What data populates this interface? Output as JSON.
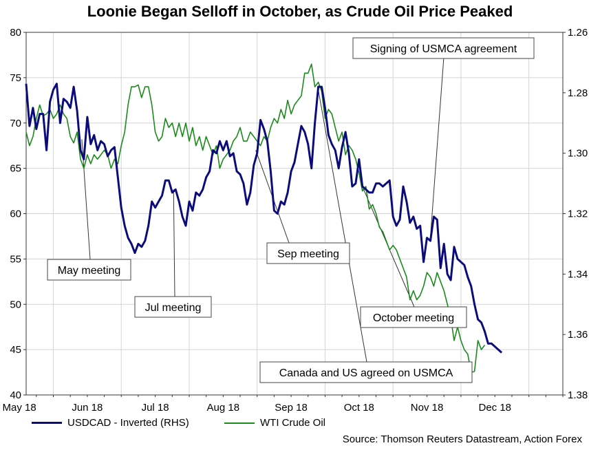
{
  "chart_data": {
    "type": "line",
    "title": "Loonie Began Selloff in October, as Crude Oil Price Peaked",
    "x_tick_labels": [
      "May 18",
      "Jun 18",
      "Jul 18",
      "Aug 18",
      "Sep 18",
      "Oct 18",
      "Nov 18",
      "Dec 18"
    ],
    "y_left": {
      "min": 40,
      "max": 80,
      "ticks": [
        "40",
        "45",
        "50",
        "55",
        "60",
        "65",
        "70",
        "75",
        "80"
      ]
    },
    "y_right": {
      "min": 1.26,
      "max": 1.38,
      "inverted": true,
      "ticks": [
        "1.26",
        "1.28",
        "1.30",
        "1.32",
        "1.34",
        "1.36",
        "1.38"
      ]
    },
    "x_range_months": [
      0.6,
      8.5
    ],
    "series": [
      {
        "name": "USDCAD - Inverted (RHS)",
        "axis": "right",
        "color": "#0b0b7a",
        "points": [
          [
            0.6,
            1.277
          ],
          [
            0.65,
            1.291
          ],
          [
            0.7,
            1.285
          ],
          [
            0.75,
            1.292
          ],
          [
            0.8,
            1.287
          ],
          [
            0.85,
            1.287
          ],
          [
            0.9,
            1.299
          ],
          [
            0.95,
            1.283
          ],
          [
            1.0,
            1.279
          ],
          [
            1.05,
            1.277
          ],
          [
            1.1,
            1.29
          ],
          [
            1.15,
            1.282
          ],
          [
            1.2,
            1.283
          ],
          [
            1.25,
            1.285
          ],
          [
            1.3,
            1.278
          ],
          [
            1.35,
            1.286
          ],
          [
            1.4,
            1.299
          ],
          [
            1.45,
            1.302
          ],
          [
            1.5,
            1.288
          ],
          [
            1.55,
            1.297
          ],
          [
            1.6,
            1.294
          ],
          [
            1.65,
            1.299
          ],
          [
            1.7,
            1.296
          ],
          [
            1.75,
            1.297
          ],
          [
            1.8,
            1.301
          ],
          [
            1.85,
            1.299
          ],
          [
            1.9,
            1.298
          ],
          [
            1.95,
            1.308
          ],
          [
            2.0,
            1.318
          ],
          [
            2.05,
            1.324
          ],
          [
            2.1,
            1.328
          ],
          [
            2.15,
            1.33
          ],
          [
            2.2,
            1.333
          ],
          [
            2.25,
            1.33
          ],
          [
            2.3,
            1.331
          ],
          [
            2.35,
            1.329
          ],
          [
            2.4,
            1.324
          ],
          [
            2.45,
            1.316
          ],
          [
            2.5,
            1.318
          ],
          [
            2.55,
            1.316
          ],
          [
            2.6,
            1.314
          ],
          [
            2.65,
            1.309
          ],
          [
            2.7,
            1.309
          ],
          [
            2.75,
            1.313
          ],
          [
            2.8,
            1.312
          ],
          [
            2.85,
            1.316
          ],
          [
            2.9,
            1.321
          ],
          [
            2.95,
            1.324
          ],
          [
            3.0,
            1.316
          ],
          [
            3.05,
            1.319
          ],
          [
            3.1,
            1.313
          ],
          [
            3.15,
            1.314
          ],
          [
            3.2,
            1.312
          ],
          [
            3.25,
            1.308
          ],
          [
            3.3,
            1.306
          ],
          [
            3.35,
            1.299
          ],
          [
            3.4,
            1.3
          ],
          [
            3.45,
            1.296
          ],
          [
            3.5,
            1.299
          ],
          [
            3.55,
            1.296
          ],
          [
            3.6,
            1.301
          ],
          [
            3.65,
            1.3
          ],
          [
            3.7,
            1.306
          ],
          [
            3.75,
            1.307
          ],
          [
            3.8,
            1.31
          ],
          [
            3.85,
            1.317
          ],
          [
            3.9,
            1.313
          ],
          [
            3.95,
            1.304
          ],
          [
            4.0,
            1.3
          ],
          [
            4.05,
            1.289
          ],
          [
            4.1,
            1.292
          ],
          [
            4.15,
            1.296
          ],
          [
            4.2,
            1.306
          ],
          [
            4.25,
            1.319
          ],
          [
            4.3,
            1.32
          ],
          [
            4.35,
            1.316
          ],
          [
            4.4,
            1.317
          ],
          [
            4.45,
            1.313
          ],
          [
            4.5,
            1.306
          ],
          [
            4.55,
            1.303
          ],
          [
            4.6,
            1.297
          ],
          [
            4.65,
            1.291
          ],
          [
            4.7,
            1.293
          ],
          [
            4.75,
            1.297
          ],
          [
            4.8,
            1.305
          ],
          [
            4.85,
            1.29
          ],
          [
            4.9,
            1.278
          ],
          [
            4.95,
            1.278
          ],
          [
            5.0,
            1.285
          ],
          [
            5.05,
            1.294
          ],
          [
            5.1,
            1.297
          ],
          [
            5.15,
            1.299
          ],
          [
            5.2,
            1.305
          ],
          [
            5.25,
            1.298
          ],
          [
            5.3,
            1.293
          ],
          [
            5.35,
            1.3
          ],
          [
            5.4,
            1.311
          ],
          [
            5.45,
            1.31
          ],
          [
            5.5,
            1.302
          ],
          [
            5.55,
            1.311
          ],
          [
            5.6,
            1.312
          ],
          [
            5.65,
            1.313
          ],
          [
            5.7,
            1.313
          ],
          [
            5.75,
            1.31
          ],
          [
            5.8,
            1.31
          ],
          [
            5.85,
            1.311
          ],
          [
            5.9,
            1.31
          ],
          [
            5.95,
            1.309
          ],
          [
            6.0,
            1.321
          ],
          [
            6.05,
            1.324
          ],
          [
            6.1,
            1.322
          ],
          [
            6.15,
            1.311
          ],
          [
            6.2,
            1.316
          ],
          [
            6.25,
            1.323
          ],
          [
            6.3,
            1.321
          ],
          [
            6.35,
            1.325
          ],
          [
            6.4,
            1.324
          ],
          [
            6.45,
            1.336
          ],
          [
            6.5,
            1.328
          ],
          [
            6.55,
            1.329
          ],
          [
            6.6,
            1.321
          ],
          [
            6.65,
            1.322
          ],
          [
            6.7,
            1.338
          ],
          [
            6.75,
            1.33
          ],
          [
            6.8,
            1.34
          ],
          [
            6.85,
            1.342
          ],
          [
            6.9,
            1.331
          ],
          [
            6.95,
            1.335
          ],
          [
            7.0,
            1.336
          ],
          [
            7.05,
            1.337
          ],
          [
            7.1,
            1.341
          ],
          [
            7.15,
            1.344
          ],
          [
            7.2,
            1.35
          ],
          [
            7.25,
            1.355
          ],
          [
            7.3,
            1.356
          ],
          [
            7.35,
            1.359
          ],
          [
            7.4,
            1.363
          ],
          [
            7.45,
            1.363
          ],
          [
            7.5,
            1.364
          ],
          [
            7.55,
            1.365
          ],
          [
            7.6,
            1.366
          ]
        ]
      },
      {
        "name": "WTI Crude Oil",
        "axis": "left",
        "color": "#1a8a1a",
        "points": [
          [
            0.6,
            69.0
          ],
          [
            0.65,
            67.5
          ],
          [
            0.7,
            68.5
          ],
          [
            0.75,
            70.5
          ],
          [
            0.8,
            72.0
          ],
          [
            0.85,
            70.8
          ],
          [
            0.9,
            71.0
          ],
          [
            0.95,
            71.5
          ],
          [
            1.0,
            70.5
          ],
          [
            1.05,
            71.0
          ],
          [
            1.1,
            72.0
          ],
          [
            1.15,
            71.0
          ],
          [
            1.2,
            70.5
          ],
          [
            1.25,
            68.5
          ],
          [
            1.3,
            67.8
          ],
          [
            1.35,
            69.0
          ],
          [
            1.4,
            66.0
          ],
          [
            1.45,
            65.0
          ],
          [
            1.5,
            66.5
          ],
          [
            1.55,
            65.5
          ],
          [
            1.6,
            66.5
          ],
          [
            1.65,
            66.0
          ],
          [
            1.7,
            66.5
          ],
          [
            1.75,
            67.0
          ],
          [
            1.8,
            66.5
          ],
          [
            1.85,
            65.0
          ],
          [
            1.9,
            66.0
          ],
          [
            1.95,
            65.5
          ],
          [
            2.0,
            67.5
          ],
          [
            2.05,
            69.0
          ],
          [
            2.1,
            72.0
          ],
          [
            2.15,
            74.0
          ],
          [
            2.2,
            74.0
          ],
          [
            2.25,
            74.2
          ],
          [
            2.3,
            72.8
          ],
          [
            2.35,
            74.0
          ],
          [
            2.4,
            74.0
          ],
          [
            2.45,
            72.0
          ],
          [
            2.5,
            69.0
          ],
          [
            2.55,
            68.0
          ],
          [
            2.6,
            68.5
          ],
          [
            2.65,
            70.5
          ],
          [
            2.7,
            69.5
          ],
          [
            2.75,
            70.0
          ],
          [
            2.8,
            68.5
          ],
          [
            2.85,
            70.0
          ],
          [
            2.9,
            68.5
          ],
          [
            2.95,
            70.0
          ],
          [
            3.0,
            68.0
          ],
          [
            3.05,
            69.5
          ],
          [
            3.1,
            67.5
          ],
          [
            3.15,
            68.5
          ],
          [
            3.2,
            67.0
          ],
          [
            3.25,
            68.5
          ],
          [
            3.3,
            67.5
          ],
          [
            3.35,
            66.5
          ],
          [
            3.4,
            67.5
          ],
          [
            3.45,
            65.0
          ],
          [
            3.5,
            66.0
          ],
          [
            3.55,
            66.5
          ],
          [
            3.6,
            67.0
          ],
          [
            3.65,
            68.0
          ],
          [
            3.7,
            68.5
          ],
          [
            3.75,
            69.5
          ],
          [
            3.8,
            68.0
          ],
          [
            3.85,
            68.0
          ],
          [
            3.9,
            69.0
          ],
          [
            3.95,
            68.5
          ],
          [
            4.0,
            68.0
          ],
          [
            4.05,
            67.5
          ],
          [
            4.1,
            68.5
          ],
          [
            4.15,
            68.0
          ],
          [
            4.2,
            69.5
          ],
          [
            4.25,
            70.5
          ],
          [
            4.3,
            70.0
          ],
          [
            4.35,
            71.5
          ],
          [
            4.4,
            70.5
          ],
          [
            4.45,
            72.5
          ],
          [
            4.5,
            71.0
          ],
          [
            4.55,
            72.0
          ],
          [
            4.6,
            72.5
          ],
          [
            4.65,
            73.0
          ],
          [
            4.7,
            75.5
          ],
          [
            4.75,
            75.5
          ],
          [
            4.8,
            76.5
          ],
          [
            4.85,
            74.0
          ],
          [
            4.9,
            74.5
          ],
          [
            4.95,
            73.5
          ],
          [
            5.0,
            70.5
          ],
          [
            5.05,
            71.5
          ],
          [
            5.1,
            71.0
          ],
          [
            5.15,
            69.5
          ],
          [
            5.2,
            68.0
          ],
          [
            5.25,
            69.0
          ],
          [
            5.3,
            66.5
          ],
          [
            5.35,
            67.5
          ],
          [
            5.4,
            67.0
          ],
          [
            5.45,
            66.0
          ],
          [
            5.5,
            64.5
          ],
          [
            5.55,
            62.5
          ],
          [
            5.6,
            63.0
          ],
          [
            5.65,
            60.5
          ],
          [
            5.7,
            61.0
          ],
          [
            5.75,
            60.0
          ],
          [
            5.8,
            58.5
          ],
          [
            5.85,
            58.0
          ],
          [
            5.9,
            57.0
          ],
          [
            5.95,
            56.0
          ],
          [
            6.0,
            56.5
          ],
          [
            6.05,
            56.0
          ],
          [
            6.1,
            55.0
          ],
          [
            6.15,
            54.0
          ],
          [
            6.2,
            53.0
          ],
          [
            6.25,
            50.5
          ],
          [
            6.3,
            51.5
          ],
          [
            6.35,
            50.5
          ],
          [
            6.4,
            51.0
          ],
          [
            6.45,
            52.0
          ],
          [
            6.5,
            53.5
          ],
          [
            6.55,
            53.0
          ],
          [
            6.6,
            52.0
          ],
          [
            6.65,
            53.5
          ],
          [
            6.7,
            52.5
          ],
          [
            6.75,
            51.5
          ],
          [
            6.8,
            50.0
          ],
          [
            6.85,
            48.5
          ],
          [
            6.9,
            46.0
          ],
          [
            6.95,
            47.5
          ],
          [
            7.0,
            46.0
          ],
          [
            7.05,
            45.0
          ],
          [
            7.1,
            44.5
          ],
          [
            7.15,
            42.5
          ],
          [
            7.2,
            42.6
          ],
          [
            7.25,
            46.0
          ],
          [
            7.3,
            45.0
          ],
          [
            7.35,
            45.5
          ]
        ]
      }
    ],
    "annotations": [
      "May meeting",
      "Jul meeting",
      "Sep meeting",
      "Signing of USMCA agreement",
      "October meeting",
      "Canada and US agreed on USMCA"
    ],
    "legend": [
      "USDCAD - Inverted (RHS)",
      "WTI Crude Oil"
    ],
    "source": "Source: Thomson Reuters Datastream, Action Forex"
  }
}
